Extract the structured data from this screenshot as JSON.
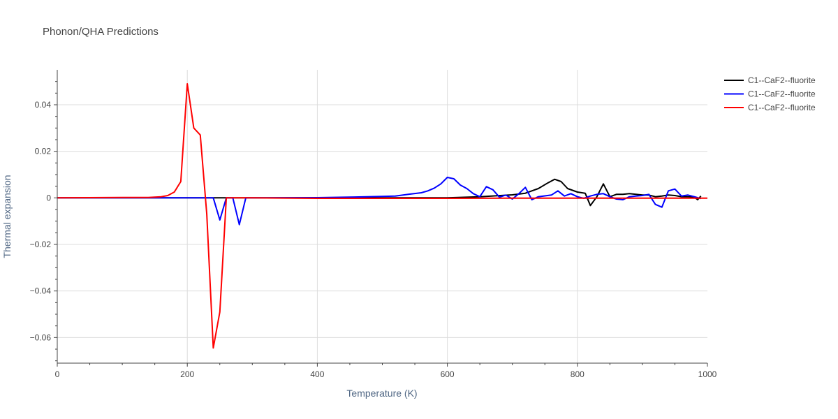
{
  "chart_data": {
    "type": "line",
    "title": "Phonon/QHA Predictions",
    "xlabel": "Temperature (K)",
    "ylabel": "Thermal expansion",
    "xlim": [
      0,
      1000
    ],
    "ylim": [
      -0.071,
      0.055
    ],
    "xticks": [
      0,
      200,
      400,
      600,
      800,
      1000
    ],
    "xtick_labels": [
      "0",
      "200",
      "400",
      "600",
      "800",
      "1000"
    ],
    "yticks": [
      0.04,
      0.02,
      0,
      -0.02,
      -0.04,
      -0.06
    ],
    "ytick_labels": [
      "0.04",
      "0.02",
      "0",
      "−0.02",
      "−0.04",
      "−0.06"
    ],
    "grid": true,
    "legend_position": "top-right",
    "series": [
      {
        "name": "C1--CaF2--fluorite",
        "color": "#000000",
        "x": [
          0,
          100,
          200,
          300,
          400,
          500,
          600,
          650,
          700,
          720,
          740,
          755,
          765,
          775,
          785,
          800,
          812,
          820,
          830,
          840,
          850,
          860,
          870,
          880,
          890,
          900,
          910,
          920,
          930,
          940,
          950,
          960,
          970,
          980,
          985,
          990
        ],
        "y": [
          0,
          0,
          0,
          0,
          0,
          0,
          0,
          0.0005,
          0.0013,
          0.002,
          0.004,
          0.0065,
          0.008,
          0.007,
          0.004,
          0.0025,
          0.002,
          -0.0033,
          0.0005,
          0.006,
          0.0005,
          0.0015,
          0.0015,
          0.0018,
          0.0015,
          0.0012,
          0.0012,
          0.0005,
          0.0008,
          0.0012,
          0.001,
          0.0005,
          0.0005,
          0.0003,
          -0.0008,
          0.0008
        ]
      },
      {
        "name": "C1--CaF2--fluorite",
        "color": "#0000ff",
        "x": [
          0,
          230,
          240,
          250,
          260,
          270,
          280,
          290,
          300,
          400,
          450,
          500,
          520,
          540,
          560,
          570,
          580,
          590,
          600,
          610,
          620,
          630,
          640,
          650,
          660,
          670,
          680,
          690,
          700,
          710,
          720,
          730,
          740,
          760,
          770,
          780,
          790,
          800,
          810,
          820,
          830,
          840,
          850,
          860,
          870,
          880,
          890,
          900,
          910,
          920,
          930,
          940,
          950,
          960,
          970,
          980,
          990
        ],
        "y": [
          0,
          0,
          0,
          -0.0095,
          0,
          0,
          -0.0115,
          0,
          0,
          0.0001,
          0.0003,
          0.0006,
          0.0008,
          0.0015,
          0.0022,
          0.003,
          0.0042,
          0.006,
          0.0088,
          0.0082,
          0.0055,
          0.004,
          0.0018,
          0.0005,
          0.0048,
          0.0035,
          0.0003,
          0.0012,
          -0.0005,
          0.0018,
          0.0045,
          -0.0008,
          0.0005,
          0.0012,
          0.003,
          0.0008,
          0.0018,
          0.0005,
          -0.0002,
          0.0008,
          0.0015,
          0.0018,
          0.0005,
          -0.0005,
          -0.0008,
          0.0005,
          0.0008,
          0.001,
          0.0015,
          -0.0028,
          -0.004,
          0.003,
          0.0038,
          0.0008,
          0.0012,
          0.0005,
          -0.0003
        ]
      },
      {
        "name": "C1--CaF2--fluorite",
        "color": "#ff0000",
        "x": [
          0,
          100,
          140,
          160,
          170,
          180,
          190,
          200,
          210,
          220,
          230,
          240,
          250,
          260,
          270,
          300,
          400,
          500,
          600,
          700,
          800,
          900,
          1000
        ],
        "y": [
          0,
          0.0002,
          0.0002,
          0.0005,
          0.001,
          0.0025,
          0.007,
          0.049,
          0.03,
          0.027,
          -0.007,
          -0.0645,
          -0.049,
          0,
          0,
          0,
          -0.0002,
          -0.0002,
          -0.0002,
          -0.0001,
          -0.0001,
          -0.0001,
          -0.0001
        ]
      }
    ]
  }
}
